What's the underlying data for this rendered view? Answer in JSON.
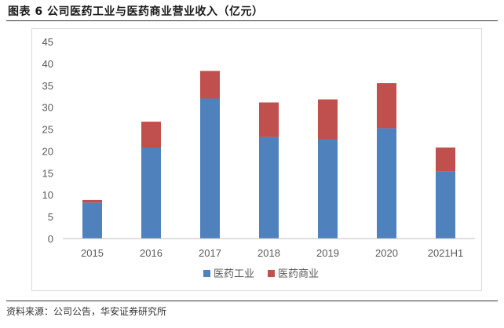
{
  "header": {
    "title": "图表 6 公司医药工业与医药商业营业收入（亿元）"
  },
  "footer": {
    "source": "资料来源：公司公告，华安证券研究所"
  },
  "chart_data": {
    "type": "bar",
    "stacked": true,
    "categories": [
      "2015",
      "2016",
      "2017",
      "2018",
      "2019",
      "2020",
      "2021H1"
    ],
    "series": [
      {
        "name": "医药工业",
        "color": "#4f81bd",
        "values": [
          8.2,
          20.8,
          32.0,
          23.2,
          22.6,
          25.2,
          15.4
        ]
      },
      {
        "name": "医药商业",
        "color": "#c0504d",
        "values": [
          0.6,
          5.9,
          6.3,
          7.9,
          9.2,
          10.3,
          5.4
        ]
      }
    ],
    "ylim": [
      0,
      45
    ],
    "yticks": [
      0,
      5,
      10,
      15,
      20,
      25,
      30,
      35,
      40,
      45
    ],
    "grid": false,
    "legend": "bottom"
  }
}
